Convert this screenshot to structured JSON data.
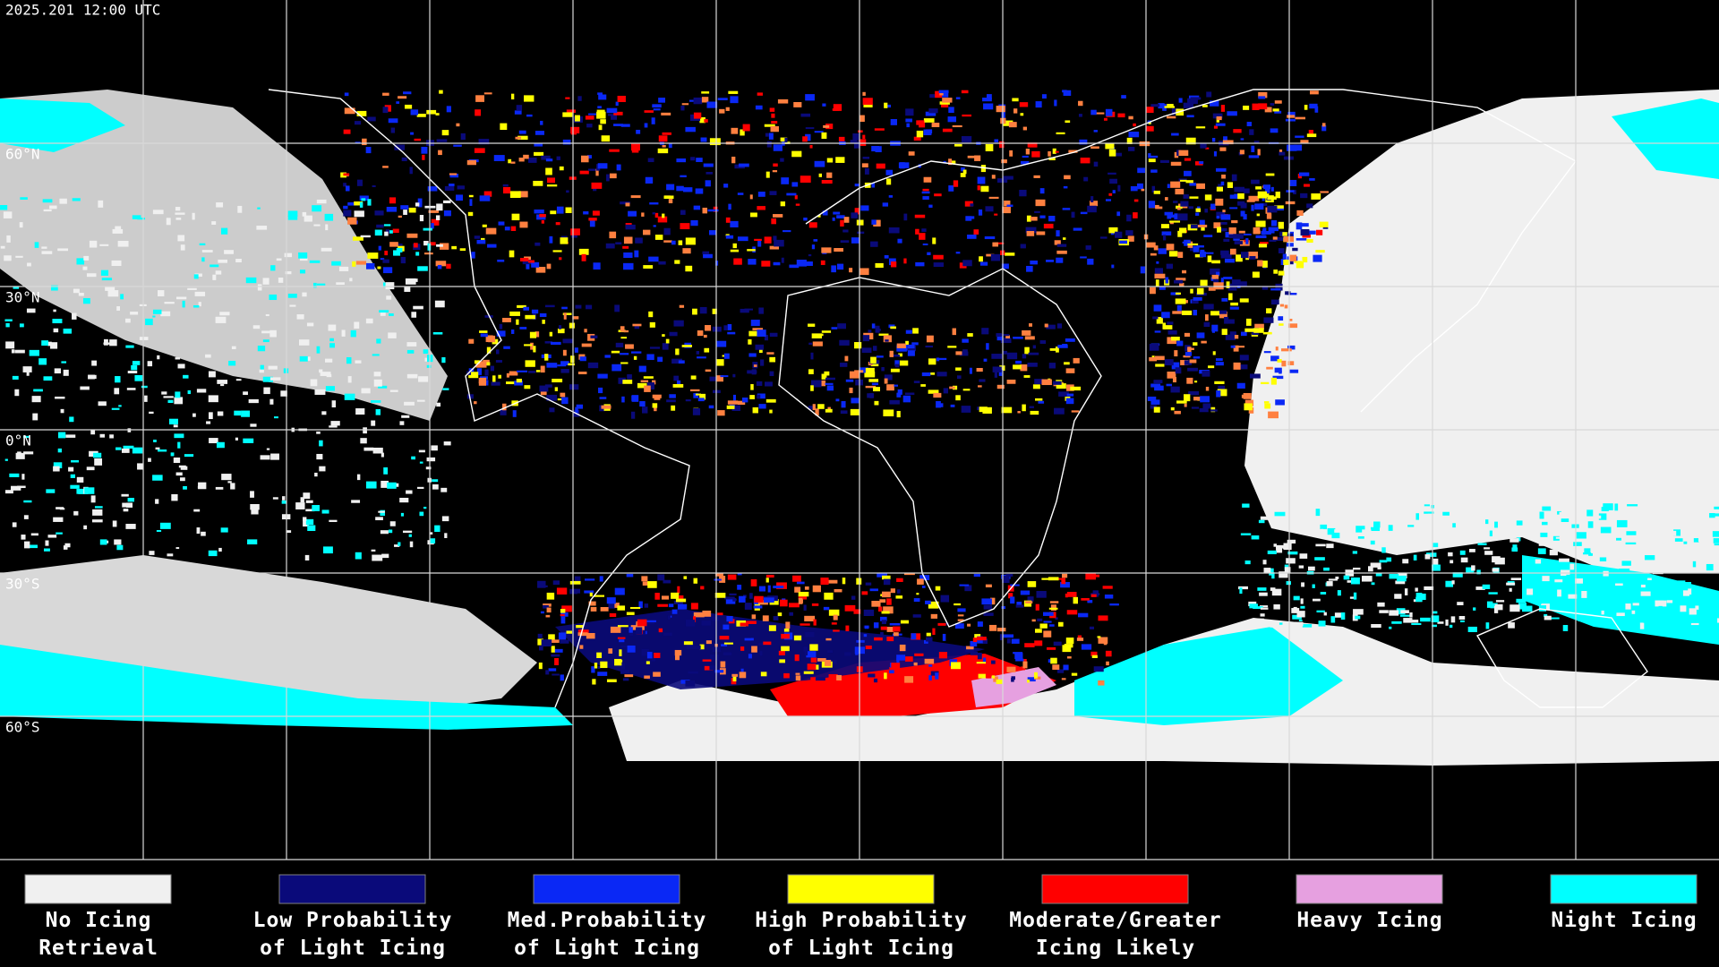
{
  "header": {
    "timestamp": "2025.201 12:00 UTC"
  },
  "map": {
    "latitude_labels": [
      "60°N",
      "30°N",
      "0°N",
      "30°S",
      "60°S"
    ]
  },
  "legend": {
    "items": [
      {
        "label": [
          "No Icing",
          "Retrieval"
        ],
        "color": "#f0f0f0"
      },
      {
        "label": [
          "Low Probability",
          "of Light Icing"
        ],
        "color": "#0a0a7a"
      },
      {
        "label": [
          "Med.Probability",
          "of Light Icing"
        ],
        "color": "#0a28f5"
      },
      {
        "label": [
          "High Probability",
          "of Light Icing"
        ],
        "color": "#ffff00"
      },
      {
        "label": [
          "Moderate/Greater",
          "Icing Likely"
        ],
        "color": "#ff0000"
      },
      {
        "label": [
          "Heavy Icing"
        ],
        "color": "#e6a0e0"
      },
      {
        "label": [
          "Night Icing"
        ],
        "color": "#00ffff"
      }
    ]
  }
}
